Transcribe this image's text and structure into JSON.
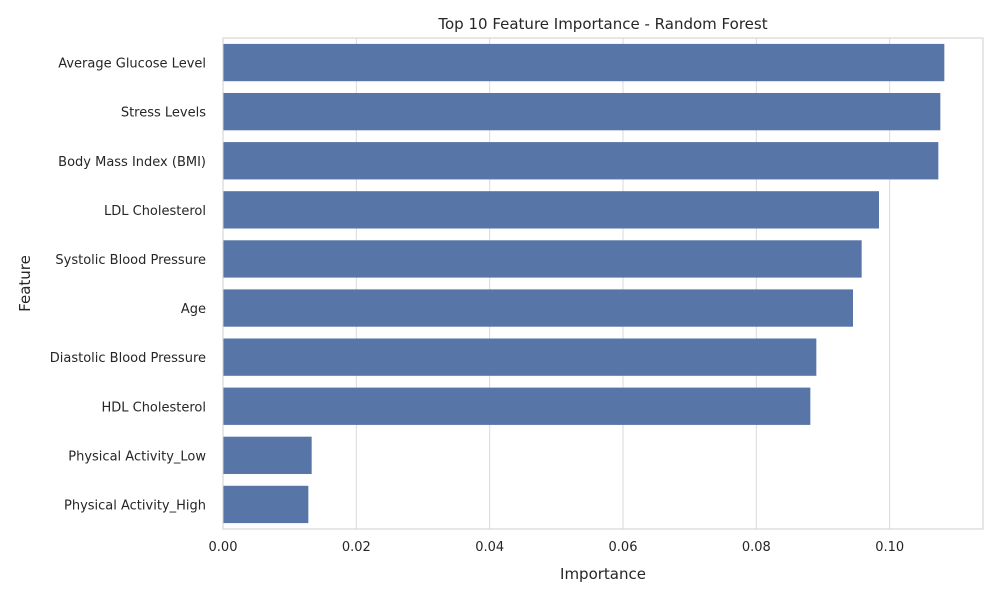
{
  "chart_data": {
    "type": "bar",
    "orientation": "horizontal",
    "title": "Top 10 Feature Importance - Random Forest",
    "xlabel": "Importance",
    "ylabel": "Feature",
    "categories": [
      "Average Glucose Level",
      "Stress Levels",
      "Body Mass Index (BMI)",
      "LDL Cholesterol",
      "Systolic Blood Pressure",
      "Age",
      "Diastolic Blood Pressure",
      "HDL Cholesterol",
      "Physical Activity_Low",
      "Physical Activity_High"
    ],
    "values": [
      0.1082,
      0.1076,
      0.1073,
      0.0984,
      0.0958,
      0.0945,
      0.089,
      0.0881,
      0.0133,
      0.0128
    ],
    "xlim": [
      0,
      0.114
    ],
    "xticks": [
      0.0,
      0.02,
      0.04,
      0.06,
      0.08,
      0.1
    ],
    "xtick_labels": [
      "0.00",
      "0.02",
      "0.04",
      "0.06",
      "0.08",
      "0.10"
    ],
    "grid": true,
    "bar_color": "#5875a7",
    "grid_color": "#dadada"
  }
}
